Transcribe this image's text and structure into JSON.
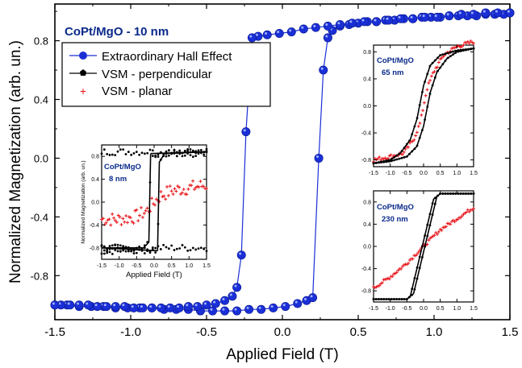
{
  "chart_data": {
    "type": "scatter",
    "main": {
      "title": "CoPt/MgO - 10 nm",
      "xlabel": "Applied Field (T)",
      "ylabel": "Normalized Magnetization (arb. un.)",
      "xlim": [
        -1.5,
        1.5
      ],
      "ylim": [
        -1.1,
        1.05
      ],
      "xticks": [
        -1.5,
        -1.0,
        -0.5,
        0.0,
        0.5,
        1.0,
        1.5
      ],
      "xtick_labels": [
        "-1.5",
        "-1.0",
        "-0.5",
        "0.0",
        "0.5",
        "1.0",
        "1.5"
      ],
      "yticks": [
        -0.8,
        -0.4,
        0.0,
        0.4,
        0.8
      ],
      "ytick_labels": [
        "-0.8",
        "-0.4",
        "0.0",
        "0.4",
        "0.8"
      ],
      "legend": {
        "placement": "top-left",
        "entries": [
          "Extraordinary Hall Effect",
          "VSM - perpendicular",
          "VSM - planar"
        ]
      },
      "series": [
        {
          "name": "Extraordinary Hall Effect",
          "color": "#1a2fd6",
          "branch_up": {
            "x": [
              -1.5,
              -1.42,
              -1.34,
              -1.26,
              -1.18,
              -1.1,
              -1.02,
              -0.94,
              -0.86,
              -0.78,
              -0.7,
              -0.62,
              -0.54,
              -0.46,
              -0.38,
              -0.3,
              -0.22,
              -0.14,
              -0.06,
              0.02,
              0.1,
              0.16,
              0.2,
              0.24,
              0.27,
              0.3,
              0.33,
              0.38,
              0.44,
              0.5,
              0.56,
              0.62,
              0.68,
              0.74,
              0.8,
              0.86,
              0.92,
              0.98,
              1.04,
              1.1,
              1.16,
              1.22,
              1.28,
              1.34,
              1.4,
              1.46,
              1.5
            ],
            "y": [
              -1.0,
              -1.0,
              -1.01,
              -1.01,
              -1.01,
              -1.02,
              -1.02,
              -1.02,
              -1.02,
              -1.03,
              -1.03,
              -1.03,
              -1.04,
              -1.04,
              -1.04,
              -1.04,
              -1.03,
              -1.03,
              -1.02,
              -1.01,
              -0.99,
              -0.97,
              -0.95,
              0.0,
              0.6,
              0.82,
              0.87,
              0.9,
              0.91,
              0.92,
              0.93,
              0.93,
              0.94,
              0.94,
              0.95,
              0.95,
              0.96,
              0.96,
              0.96,
              0.97,
              0.97,
              0.97,
              0.97,
              0.98,
              0.98,
              0.98,
              0.99
            ]
          },
          "branch_down": {
            "x": [
              1.5,
              1.42,
              1.34,
              1.26,
              1.18,
              1.1,
              1.02,
              0.94,
              0.86,
              0.78,
              0.7,
              0.62,
              0.54,
              0.46,
              0.38,
              0.3,
              0.22,
              0.14,
              0.06,
              -0.02,
              -0.1,
              -0.16,
              -0.2,
              -0.24,
              -0.27,
              -0.3,
              -0.33,
              -0.38,
              -0.44,
              -0.5,
              -0.56,
              -0.62,
              -0.68,
              -0.74,
              -0.8,
              -0.86,
              -0.92,
              -0.98,
              -1.04,
              -1.1,
              -1.16,
              -1.22,
              -1.28,
              -1.34,
              -1.4,
              -1.46,
              -1.5
            ],
            "y": [
              0.99,
              0.99,
              0.99,
              0.98,
              0.98,
              0.97,
              0.96,
              0.96,
              0.95,
              0.95,
              0.94,
              0.93,
              0.93,
              0.92,
              0.91,
              0.9,
              0.89,
              0.88,
              0.86,
              0.85,
              0.84,
              0.83,
              0.82,
              0.18,
              -0.66,
              -0.88,
              -0.94,
              -0.97,
              -0.99,
              -1.0,
              -1.01,
              -1.01,
              -1.02,
              -1.02,
              -1.02,
              -1.02,
              -1.02,
              -1.02,
              -1.01,
              -1.01,
              -1.01,
              -1.01,
              -1.0,
              -1.0,
              -1.0,
              -1.0,
              -1.0
            ]
          }
        },
        {
          "name": "VSM - perpendicular",
          "color": "#000000"
        },
        {
          "name": "VSM - planar",
          "color": "#e8141a"
        }
      ]
    },
    "insets": [
      {
        "label_line1": "CoPt/MgO",
        "label_line2": "8 nm",
        "xlabel": "Applied Field (T)",
        "ylabel": "Normalized Magnetization (arb. un.)",
        "xlim": [
          -1.5,
          1.5
        ],
        "ylim": [
          -1.0,
          1.0
        ],
        "xticks": [
          -1.5,
          -1.0,
          -0.5,
          0.0,
          0.5,
          1.0,
          1.5
        ],
        "xtick_labels": [
          "-1.5",
          "-1.0",
          "-0.5",
          "0.0",
          "0.5",
          "1.0",
          "1.5"
        ],
        "yticks": [
          -0.8,
          -0.4,
          0.0,
          0.4,
          0.8
        ],
        "ytick_labels": [
          "-0.8",
          "-0.4",
          "0.0",
          "0.4",
          "0.8"
        ],
        "perpendicular": {
          "x": [
            -1.5,
            -0.3,
            -0.15,
            -0.1,
            1.5,
            0.3,
            0.15,
            0.1
          ],
          "y": [
            -0.8,
            -0.8,
            -0.7,
            0.85,
            0.88,
            0.85,
            0.7,
            -0.85
          ]
        },
        "planar": {
          "x": [
            -1.5,
            -1.0,
            -0.5,
            -0.2,
            0.0,
            0.2,
            0.5,
            1.0,
            1.5
          ],
          "y": [
            -0.3,
            -0.3,
            -0.25,
            -0.15,
            0.0,
            0.12,
            0.2,
            0.25,
            0.3
          ]
        }
      },
      {
        "label_line1": "CoPt/MgO",
        "label_line2": "65 nm",
        "xlim": [
          -1.5,
          1.5
        ],
        "ylim": [
          -0.9,
          0.9
        ],
        "xticks": [
          -1.5,
          -1.0,
          -0.5,
          0.0,
          0.5,
          1.0,
          1.5
        ],
        "xtick_labels": [
          "-1.5",
          "-1.0",
          "-0.5",
          "0.0",
          "0.5",
          "1.0",
          "1.5"
        ],
        "yticks": [
          -0.8,
          -0.4,
          0.0,
          0.4,
          0.8
        ],
        "ytick_labels": [
          "-0.8",
          "-0.4",
          "0.0",
          "0.4",
          "0.8"
        ],
        "perpendicular_up": {
          "x": [
            -1.5,
            -1.0,
            -0.5,
            -0.2,
            0.0,
            0.2,
            0.4,
            0.7,
            1.0,
            1.5
          ],
          "y": [
            -0.85,
            -0.82,
            -0.75,
            -0.6,
            -0.3,
            0.2,
            0.5,
            0.7,
            0.8,
            0.85
          ]
        },
        "perpendicular_down": {
          "x": [
            1.5,
            1.0,
            0.5,
            0.2,
            0.0,
            -0.2,
            -0.4,
            -0.7,
            -1.0,
            -1.5
          ],
          "y": [
            0.85,
            0.82,
            0.75,
            0.6,
            0.3,
            -0.2,
            -0.5,
            -0.7,
            -0.8,
            -0.85
          ]
        },
        "planar": {
          "x": [
            -1.5,
            -1.0,
            -0.6,
            -0.3,
            -0.1,
            0.0,
            0.1,
            0.3,
            0.6,
            1.0,
            1.5
          ],
          "y": [
            -0.8,
            -0.75,
            -0.7,
            -0.5,
            -0.25,
            0.0,
            0.25,
            0.5,
            0.75,
            0.88,
            0.95
          ]
        }
      },
      {
        "label_line1": "CoPt/MgO",
        "label_line2": "230 nm",
        "xlim": [
          -1.5,
          1.5
        ],
        "ylim": [
          -1.0,
          1.0
        ],
        "xticks": [
          -1.5,
          -1.0,
          -0.5,
          0.0,
          0.5,
          1.0,
          1.5
        ],
        "xtick_labels": [
          "-1.5",
          "-1.0",
          "-0.5",
          "0.0",
          "0.5",
          "1.0",
          "1.5"
        ],
        "yticks": [
          -0.8,
          -0.4,
          0.0,
          0.4,
          0.8
        ],
        "ytick_labels": [
          "-0.8",
          "-0.4",
          "0.0",
          "0.4",
          "0.8"
        ],
        "perpendicular_up": {
          "x": [
            -1.5,
            -0.5,
            -0.3,
            0.4,
            0.5,
            1.5
          ],
          "y": [
            -0.95,
            -0.95,
            -0.85,
            0.9,
            0.95,
            0.95
          ]
        },
        "perpendicular_down": {
          "x": [
            1.5,
            0.5,
            0.3,
            -0.4,
            -0.5,
            -1.5
          ],
          "y": [
            0.95,
            0.95,
            0.85,
            -0.9,
            -0.95,
            -0.95
          ]
        },
        "planar": {
          "x": [
            -1.5,
            -1.0,
            -0.5,
            0.0,
            0.5,
            1.0,
            1.5
          ],
          "y": [
            -0.75,
            -0.55,
            -0.3,
            0.0,
            0.3,
            0.5,
            0.7
          ]
        }
      }
    ]
  }
}
